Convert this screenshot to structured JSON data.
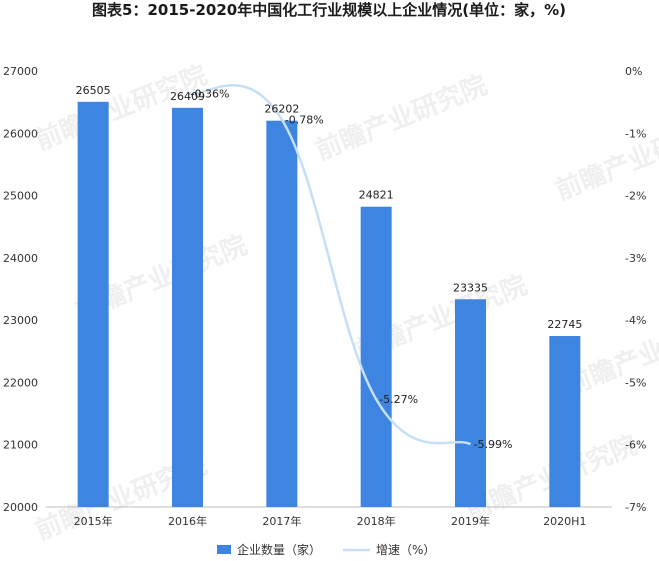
{
  "chart_data": {
    "type": "bar",
    "title": "图表5：2015-2020年中国化工行业规模以上企业情况(单位：家，%)",
    "categories": [
      "2015年",
      "2016年",
      "2017年",
      "2018年",
      "2019年",
      "2020H1"
    ],
    "series": [
      {
        "name": "企业数量（家）",
        "type": "bar",
        "axis": "left",
        "values": [
          26505,
          26409,
          26202,
          24821,
          23335,
          22745
        ],
        "labels": [
          "26505",
          "26409",
          "26202",
          "24821",
          "23335",
          "22745"
        ],
        "color": "#3d85e0"
      },
      {
        "name": "增速（%）",
        "type": "line",
        "axis": "right",
        "values": [
          null,
          -0.36,
          -0.78,
          -5.27,
          -5.99,
          null
        ],
        "labels": [
          "",
          "-0.36%",
          "-0.78%",
          "-5.27%",
          "-5.99%",
          ""
        ],
        "color": "#c6dff6"
      }
    ],
    "y_left": {
      "min": 20000,
      "max": 27000,
      "ticks": [
        "20000",
        "21000",
        "22000",
        "23000",
        "24000",
        "25000",
        "26000",
        "27000"
      ]
    },
    "y_right": {
      "min": -7,
      "max": 0,
      "ticks": [
        "0%",
        "-1%",
        "-2%",
        "-3%",
        "-4%",
        "-5%",
        "-6%",
        "-7%"
      ]
    },
    "legend": {
      "position": "bottom"
    },
    "grid": false
  },
  "watermark": "前瞻产业研究院"
}
